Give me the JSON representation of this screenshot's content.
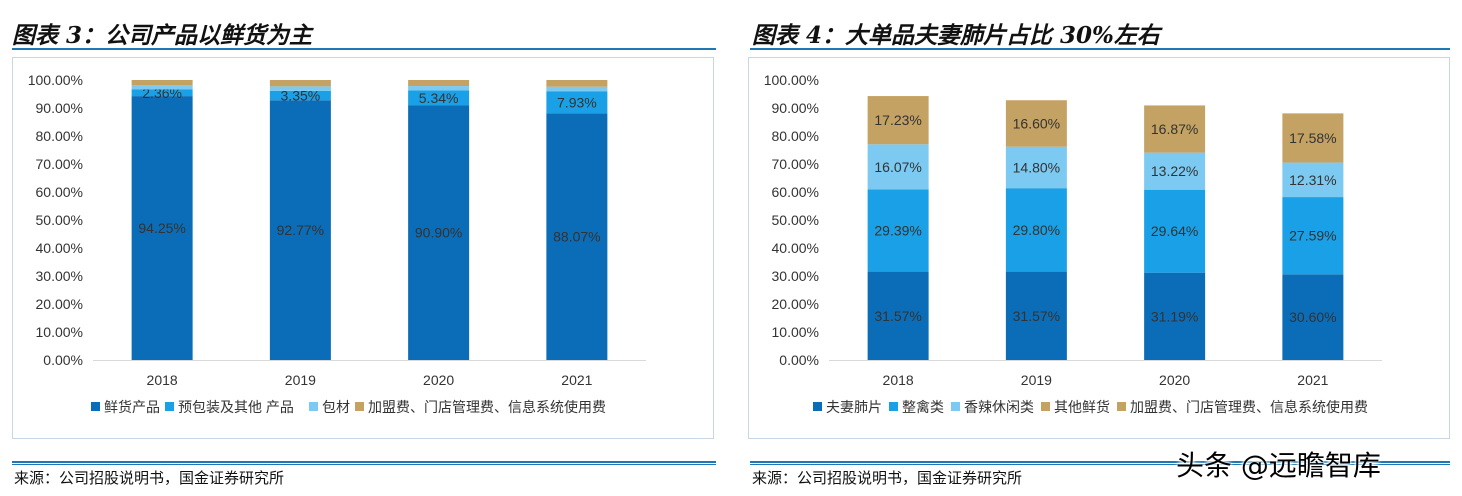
{
  "panels": [
    {
      "title": "图表 3：公司产品以鲜货为主",
      "source": "来源：公司招股说明书，国金证券研究所"
    },
    {
      "title": "图表 4：大单品夫妻肺片占比 30%左右",
      "source": "来源：公司招股说明书，国金证券研究所"
    }
  ],
  "watermark": "头条 @远瞻智库",
  "chart_data": [
    {
      "type": "bar",
      "stacked": true,
      "title": "",
      "categories": [
        "2018",
        "2019",
        "2020",
        "2021"
      ],
      "ylim": [
        0,
        100
      ],
      "yticks": [
        "0.00%",
        "10.00%",
        "20.00%",
        "30.00%",
        "40.00%",
        "50.00%",
        "60.00%",
        "70.00%",
        "80.00%",
        "90.00%",
        "100.00%"
      ],
      "legend_position": "bottom",
      "grid": false,
      "series": [
        {
          "name": "鲜货产品",
          "color": "#0b6db7",
          "values": [
            94.25,
            92.77,
            90.9,
            88.07
          ],
          "labels": [
            "94.25%",
            "92.77%",
            "90.90%",
            "88.07%"
          ]
        },
        {
          "name": "预包装及其他 产品",
          "color": "#1aa0e6",
          "values": [
            2.36,
            3.35,
            5.34,
            7.93
          ],
          "labels": [
            "2.36%",
            "3.35%",
            "5.34%",
            "7.93%"
          ]
        },
        {
          "name": "包材",
          "color": "#7ccaf2",
          "values": [
            1.6,
            1.6,
            1.6,
            1.6
          ],
          "labels": [
            "",
            "",
            "",
            ""
          ]
        },
        {
          "name": "加盟费、门店管理费、信息系统使用费",
          "color": "#c4a264",
          "values": [
            1.79,
            2.28,
            2.16,
            2.4
          ],
          "labels": [
            "",
            "",
            "",
            ""
          ]
        }
      ]
    },
    {
      "type": "bar",
      "stacked": true,
      "title": "",
      "categories": [
        "2018",
        "2019",
        "2020",
        "2021"
      ],
      "ylim": [
        0,
        100
      ],
      "yticks": [
        "0.00%",
        "10.00%",
        "20.00%",
        "30.00%",
        "40.00%",
        "50.00%",
        "60.00%",
        "70.00%",
        "80.00%",
        "90.00%",
        "100.00%"
      ],
      "legend_position": "bottom",
      "grid": false,
      "series": [
        {
          "name": "夫妻肺片",
          "color": "#0b6db7",
          "values": [
            31.57,
            31.57,
            31.19,
            30.6
          ],
          "labels": [
            "31.57%",
            "31.57%",
            "31.19%",
            "30.60%"
          ]
        },
        {
          "name": "整禽类",
          "color": "#1aa0e6",
          "values": [
            29.39,
            29.8,
            29.64,
            27.59
          ],
          "labels": [
            "29.39%",
            "29.80%",
            "29.64%",
            "27.59%"
          ]
        },
        {
          "name": "香辣休闲类",
          "color": "#7ccaf2",
          "values": [
            16.07,
            14.8,
            13.22,
            12.31
          ],
          "labels": [
            "16.07%",
            "14.80%",
            "13.22%",
            "12.31%"
          ]
        },
        {
          "name": "其他鲜货",
          "color": "#c4a264",
          "values": [
            17.23,
            16.6,
            16.87,
            17.58
          ],
          "labels": [
            "17.23%",
            "16.60%",
            "16.87%",
            "17.58%"
          ]
        },
        {
          "name": "加盟费、门店管理费、信息系统使用费",
          "color": "#c4a264",
          "values": [
            0,
            0,
            0,
            0
          ],
          "labels": [
            "",
            "",
            "",
            ""
          ]
        }
      ]
    }
  ]
}
